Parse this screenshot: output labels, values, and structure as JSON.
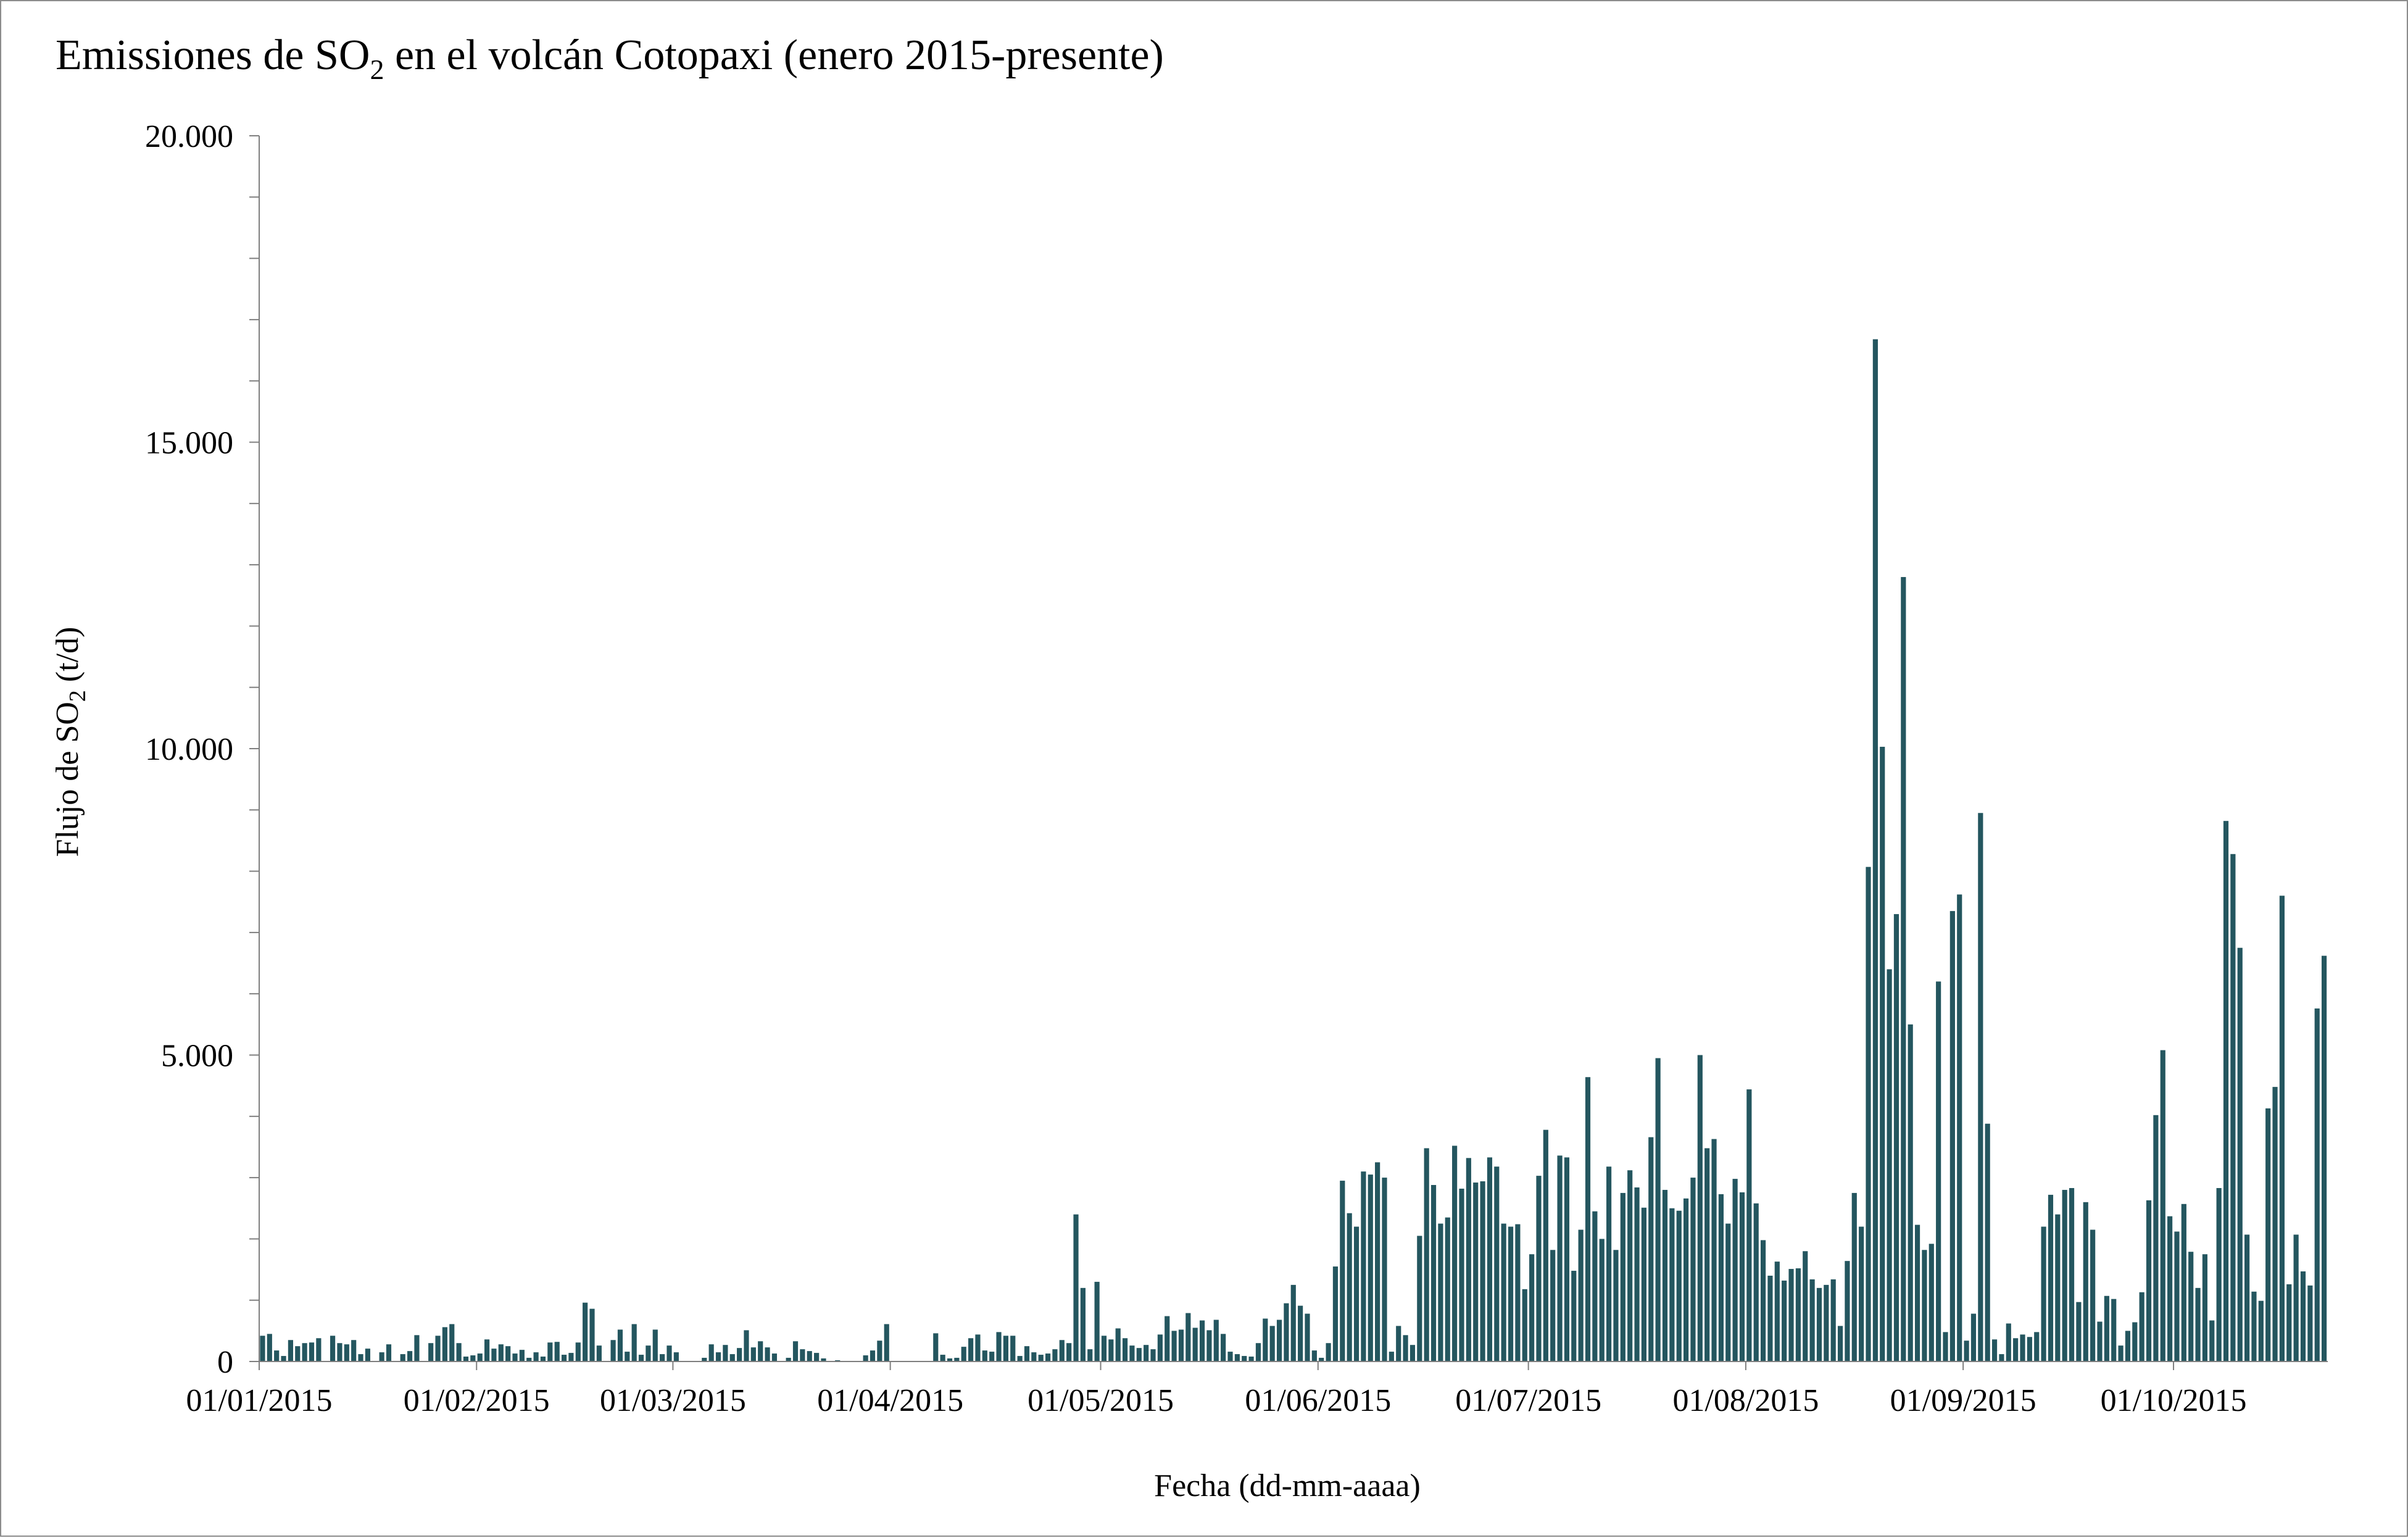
{
  "title": {
    "prefix": "Emissiones de SO",
    "sub": "2",
    "suffix": " en el volcán Cotopaxi (enero 2015-presente)"
  },
  "xlabel": "Fecha (dd-mm-aaaa)",
  "ylabel": {
    "prefix": "Flujo de SO",
    "sub": "2",
    "suffix": " (t/d)"
  },
  "colors": {
    "bar": "#24565f",
    "axis": "#7f7f7f",
    "frame": "#8c8c8c"
  },
  "chart_data": {
    "type": "bar",
    "ylim": [
      0,
      20000
    ],
    "y_ticks": [
      0,
      5000,
      10000,
      15000,
      20000
    ],
    "y_tick_labels": [
      "0",
      "5.000",
      "10.000",
      "15.000",
      "20.000"
    ],
    "y_minor_step": 1000,
    "x_tick_labels": [
      "01/01/2015",
      "01/02/2015",
      "01/03/2015",
      "01/04/2015",
      "01/05/2015",
      "01/06/2015",
      "01/07/2015",
      "01/08/2015",
      "01/09/2015",
      "01/10/2015"
    ],
    "x_tick_days": [
      0,
      31,
      59,
      90,
      120,
      151,
      181,
      212,
      243,
      273
    ],
    "x_start": "01/01/2015",
    "x_end": "23/10/2015",
    "grid": false,
    "legend": "none",
    "values": [
      420,
      450,
      180,
      90,
      350,
      250,
      300,
      310,
      380,
      0,
      420,
      300,
      280,
      350,
      120,
      210,
      0,
      150,
      280,
      0,
      120,
      170,
      430,
      0,
      300,
      420,
      560,
      610,
      300,
      80,
      100,
      130,
      360,
      210,
      280,
      250,
      130,
      190,
      60,
      150,
      80,
      310,
      320,
      110,
      140,
      310,
      960,
      860,
      260,
      0,
      350,
      520,
      160,
      610,
      110,
      260,
      520,
      120,
      260,
      150,
      0,
      0,
      0,
      60,
      280,
      150,
      270,
      120,
      220,
      510,
      230,
      330,
      230,
      130,
      0,
      60,
      330,
      200,
      170,
      140,
      50,
      0,
      20,
      0,
      0,
      0,
      100,
      180,
      340,
      610,
      0,
      0,
      0,
      0,
      0,
      0,
      460,
      110,
      50,
      60,
      240,
      380,
      440,
      180,
      160,
      480,
      420,
      420,
      90,
      250,
      150,
      110,
      130,
      200,
      350,
      300,
      2400,
      1200,
      200,
      1300,
      420,
      360,
      540,
      380,
      260,
      220,
      270,
      200,
      440,
      740,
      500,
      520,
      790,
      550,
      670,
      510,
      680,
      450,
      160,
      120,
      90,
      80,
      300,
      700,
      580,
      680,
      950,
      1250,
      910,
      780,
      180,
      60,
      300,
      1550,
      2950,
      2420,
      2200,
      3100,
      3050,
      3250,
      3000,
      160,
      580,
      430,
      270,
      2050,
      3480,
      2880,
      2250,
      2350,
      3520,
      2820,
      3320,
      2920,
      2940,
      3330,
      3180,
      2250,
      2200,
      2240,
      1180,
      1750,
      3030,
      3780,
      1820,
      3360,
      3330,
      1480,
      2150,
      4640,
      2450,
      2000,
      3180,
      1820,
      2750,
      3120,
      2840,
      2510,
      3660,
      4950,
      2800,
      2500,
      2460,
      2660,
      3000,
      5000,
      3480,
      3630,
      2730,
      2250,
      2980,
      2760,
      4440,
      2580,
      1980,
      1400,
      1630,
      1320,
      1510,
      1520,
      1800,
      1340,
      1200,
      1250,
      1340,
      580,
      1640,
      2750,
      2200,
      8070,
      16680,
      10030,
      6400,
      7300,
      12800,
      5500,
      2230,
      1820,
      1920,
      6200,
      480,
      7350,
      7620,
      340,
      780,
      8950,
      3880,
      360,
      120,
      620,
      380,
      440,
      400,
      480,
      2200,
      2720,
      2400,
      2800,
      2830,
      970,
      2600,
      2150,
      650,
      1070,
      1020,
      260,
      500,
      640,
      1130,
      2630,
      4020,
      5080,
      2370,
      2120,
      2570,
      1790,
      1200,
      1750,
      670,
      2830,
      8820,
      8280,
      6750,
      2070,
      1140,
      990,
      4130,
      4480,
      7600,
      1260,
      2070,
      1470,
      1240,
      5760,
      6620
    ]
  }
}
